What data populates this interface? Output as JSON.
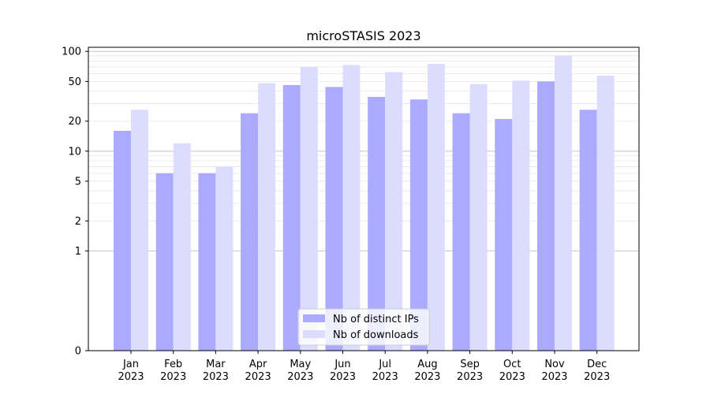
{
  "chart_data": {
    "type": "bar",
    "title": "microSTASIS 2023",
    "xlabel": "",
    "ylabel": "",
    "y_scale": "symlog",
    "ylim": [
      0,
      110
    ],
    "yticks": [
      0,
      1,
      2,
      5,
      10,
      20,
      50,
      100
    ],
    "ytick_labels": [
      "0",
      "1",
      "2",
      "5",
      "10",
      "20",
      "50",
      "100"
    ],
    "grid": "horizontal (major + minor)",
    "legend_position": "bottom-center",
    "categories": [
      "Jan\n2023",
      "Feb\n2023",
      "Mar\n2023",
      "Apr\n2023",
      "May\n2023",
      "Jun\n2023",
      "Jul\n2023",
      "Aug\n2023",
      "Sep\n2023",
      "Oct\n2023",
      "Nov\n2023",
      "Dec\n2023"
    ],
    "series": [
      {
        "name": "Nb of distinct IPs",
        "color": "#aaaaff",
        "values": [
          16,
          6,
          6,
          24,
          46,
          44,
          35,
          33,
          24,
          21,
          50,
          26
        ]
      },
      {
        "name": "Nb of downloads",
        "color": "#dcdcff",
        "values": [
          26,
          12,
          7,
          48,
          70,
          73,
          62,
          75,
          47,
          51,
          91,
          57
        ]
      }
    ]
  }
}
